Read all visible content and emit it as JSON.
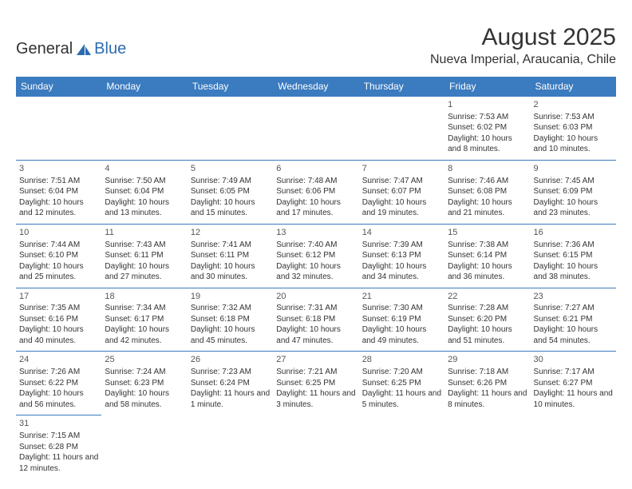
{
  "logo": {
    "part1": "General",
    "part2": "Blue"
  },
  "title": "August 2025",
  "location": "Nueva Imperial, Araucania, Chile",
  "colors": {
    "header_bg": "#3b7bbf",
    "header_text": "#ffffff",
    "border": "#3b7bbf",
    "text": "#333333",
    "logo_blue": "#2b6cb0"
  },
  "weekdays": [
    "Sunday",
    "Monday",
    "Tuesday",
    "Wednesday",
    "Thursday",
    "Friday",
    "Saturday"
  ],
  "layout": {
    "first_weekday_index": 5,
    "days_in_month": 31
  },
  "days": {
    "1": {
      "sunrise": "7:53 AM",
      "sunset": "6:02 PM",
      "daylight": "10 hours and 8 minutes."
    },
    "2": {
      "sunrise": "7:53 AM",
      "sunset": "6:03 PM",
      "daylight": "10 hours and 10 minutes."
    },
    "3": {
      "sunrise": "7:51 AM",
      "sunset": "6:04 PM",
      "daylight": "10 hours and 12 minutes."
    },
    "4": {
      "sunrise": "7:50 AM",
      "sunset": "6:04 PM",
      "daylight": "10 hours and 13 minutes."
    },
    "5": {
      "sunrise": "7:49 AM",
      "sunset": "6:05 PM",
      "daylight": "10 hours and 15 minutes."
    },
    "6": {
      "sunrise": "7:48 AM",
      "sunset": "6:06 PM",
      "daylight": "10 hours and 17 minutes."
    },
    "7": {
      "sunrise": "7:47 AM",
      "sunset": "6:07 PM",
      "daylight": "10 hours and 19 minutes."
    },
    "8": {
      "sunrise": "7:46 AM",
      "sunset": "6:08 PM",
      "daylight": "10 hours and 21 minutes."
    },
    "9": {
      "sunrise": "7:45 AM",
      "sunset": "6:09 PM",
      "daylight": "10 hours and 23 minutes."
    },
    "10": {
      "sunrise": "7:44 AM",
      "sunset": "6:10 PM",
      "daylight": "10 hours and 25 minutes."
    },
    "11": {
      "sunrise": "7:43 AM",
      "sunset": "6:11 PM",
      "daylight": "10 hours and 27 minutes."
    },
    "12": {
      "sunrise": "7:41 AM",
      "sunset": "6:11 PM",
      "daylight": "10 hours and 30 minutes."
    },
    "13": {
      "sunrise": "7:40 AM",
      "sunset": "6:12 PM",
      "daylight": "10 hours and 32 minutes."
    },
    "14": {
      "sunrise": "7:39 AM",
      "sunset": "6:13 PM",
      "daylight": "10 hours and 34 minutes."
    },
    "15": {
      "sunrise": "7:38 AM",
      "sunset": "6:14 PM",
      "daylight": "10 hours and 36 minutes."
    },
    "16": {
      "sunrise": "7:36 AM",
      "sunset": "6:15 PM",
      "daylight": "10 hours and 38 minutes."
    },
    "17": {
      "sunrise": "7:35 AM",
      "sunset": "6:16 PM",
      "daylight": "10 hours and 40 minutes."
    },
    "18": {
      "sunrise": "7:34 AM",
      "sunset": "6:17 PM",
      "daylight": "10 hours and 42 minutes."
    },
    "19": {
      "sunrise": "7:32 AM",
      "sunset": "6:18 PM",
      "daylight": "10 hours and 45 minutes."
    },
    "20": {
      "sunrise": "7:31 AM",
      "sunset": "6:18 PM",
      "daylight": "10 hours and 47 minutes."
    },
    "21": {
      "sunrise": "7:30 AM",
      "sunset": "6:19 PM",
      "daylight": "10 hours and 49 minutes."
    },
    "22": {
      "sunrise": "7:28 AM",
      "sunset": "6:20 PM",
      "daylight": "10 hours and 51 minutes."
    },
    "23": {
      "sunrise": "7:27 AM",
      "sunset": "6:21 PM",
      "daylight": "10 hours and 54 minutes."
    },
    "24": {
      "sunrise": "7:26 AM",
      "sunset": "6:22 PM",
      "daylight": "10 hours and 56 minutes."
    },
    "25": {
      "sunrise": "7:24 AM",
      "sunset": "6:23 PM",
      "daylight": "10 hours and 58 minutes."
    },
    "26": {
      "sunrise": "7:23 AM",
      "sunset": "6:24 PM",
      "daylight": "11 hours and 1 minute."
    },
    "27": {
      "sunrise": "7:21 AM",
      "sunset": "6:25 PM",
      "daylight": "11 hours and 3 minutes."
    },
    "28": {
      "sunrise": "7:20 AM",
      "sunset": "6:25 PM",
      "daylight": "11 hours and 5 minutes."
    },
    "29": {
      "sunrise": "7:18 AM",
      "sunset": "6:26 PM",
      "daylight": "11 hours and 8 minutes."
    },
    "30": {
      "sunrise": "7:17 AM",
      "sunset": "6:27 PM",
      "daylight": "11 hours and 10 minutes."
    },
    "31": {
      "sunrise": "7:15 AM",
      "sunset": "6:28 PM",
      "daylight": "11 hours and 12 minutes."
    }
  },
  "labels": {
    "sunrise": "Sunrise:",
    "sunset": "Sunset:",
    "daylight": "Daylight:"
  }
}
